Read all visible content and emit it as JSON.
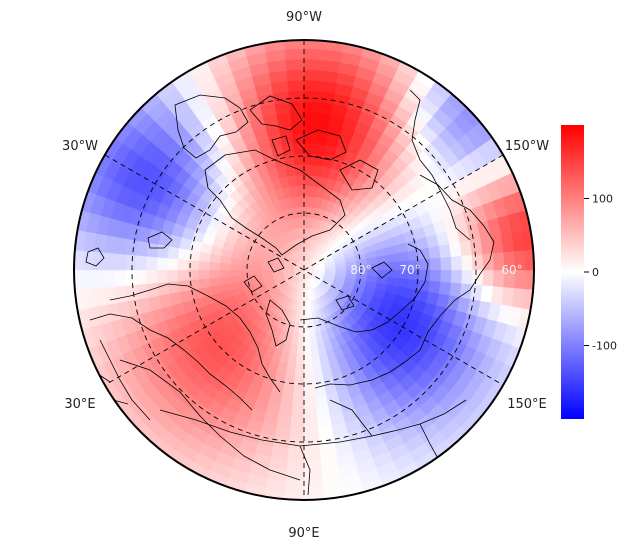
{
  "map": {
    "projection": "north polar stereographic",
    "colormap": {
      "low": "#0000ff",
      "mid": "#ffffff",
      "high": "#ff0000"
    },
    "longitude_labels": [
      "90°W",
      "30°W",
      "150°W",
      "30°E",
      "150°E",
      "90°E"
    ],
    "latitude_labels": [
      "80°",
      "70°",
      "60°"
    ],
    "fill_description": "anomaly field: positive (red) over Canadian Arctic/Greenland and northern Europe–Siberia, negative (blue) over North Atlantic–Labrador and East Siberia/Pacific sector"
  },
  "colorbar": {
    "min": -200,
    "max": 200,
    "ticks": [
      {
        "value": 100,
        "label": "100"
      },
      {
        "value": 0,
        "label": "0"
      },
      {
        "value": -100,
        "label": "-100"
      }
    ]
  }
}
